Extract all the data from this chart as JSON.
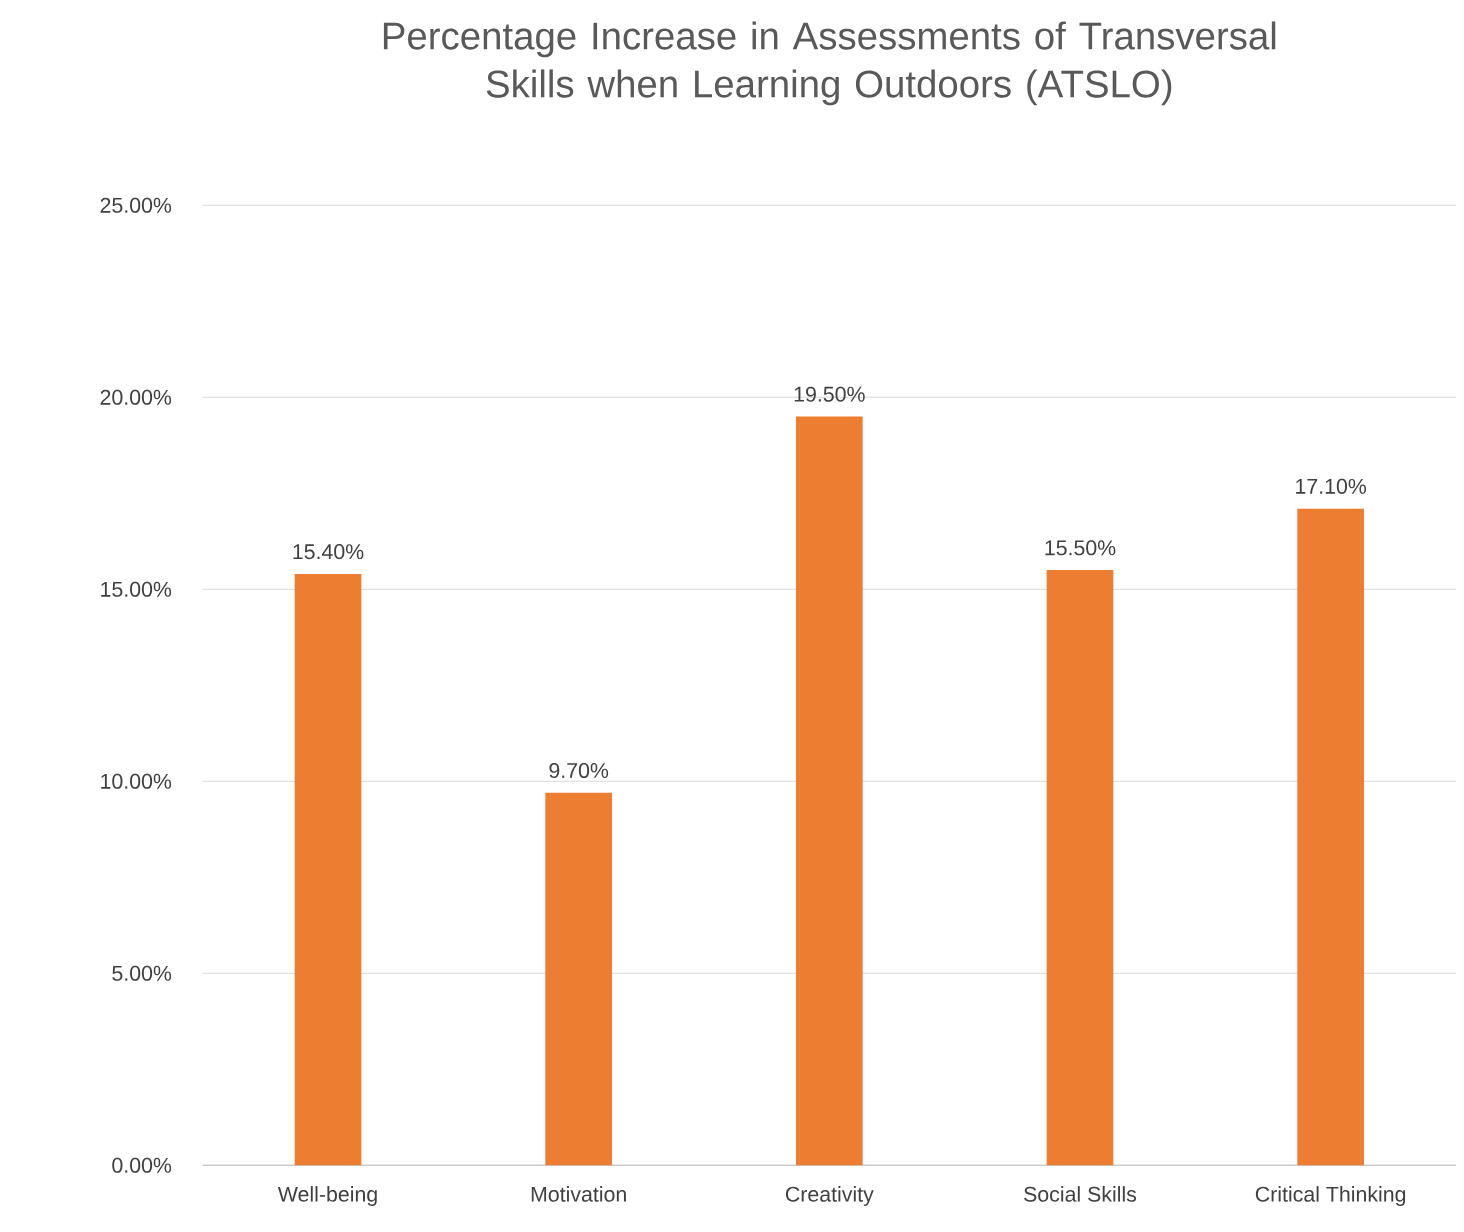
{
  "chart_data": {
    "type": "bar",
    "title": "Percentage Increase in Assessments of Transversal Skills when Learning Outdoors (ATSLO)",
    "categories": [
      "Well-being",
      "Motivation",
      "Creativity",
      "Social Skills",
      "Critical Thinking"
    ],
    "values": [
      15.4,
      9.7,
      19.5,
      15.5,
      17.1
    ],
    "value_labels": [
      "15.40%",
      "9.70%",
      "19.50%",
      "15.50%",
      "17.10%"
    ],
    "color": "#ed7d31",
    "ylim": [
      0,
      25
    ],
    "yticks": [
      {
        "value": 0,
        "label": "0.00%"
      },
      {
        "value": 5,
        "label": "5.00%"
      },
      {
        "value": 10,
        "label": "10.00%"
      },
      {
        "value": 15,
        "label": "15.00%"
      },
      {
        "value": 20,
        "label": "20.00%"
      },
      {
        "value": 25,
        "label": "25.00%"
      }
    ],
    "grid": "y"
  }
}
